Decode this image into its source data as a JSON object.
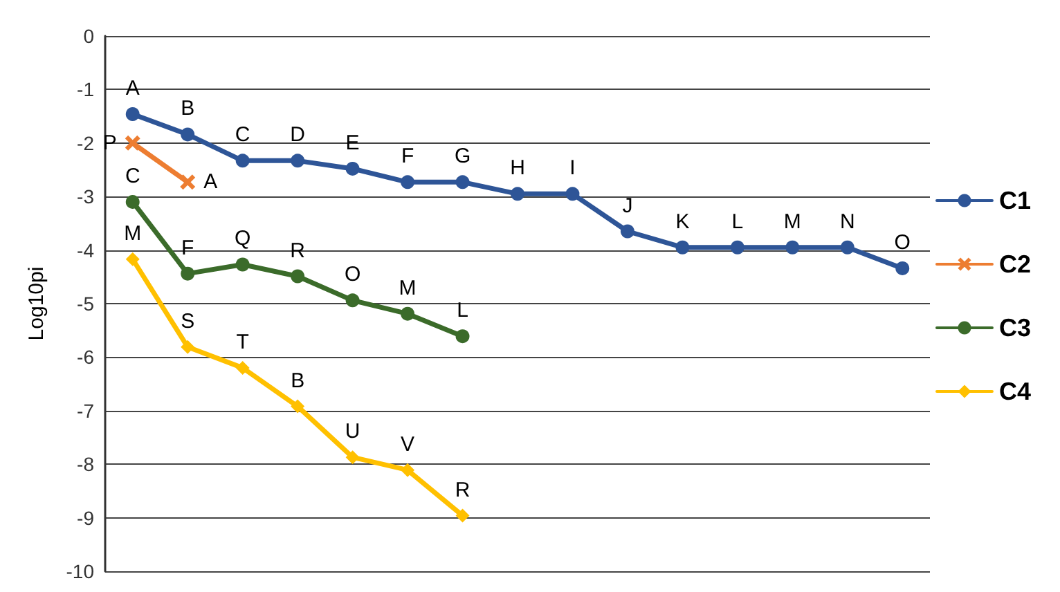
{
  "chart_data": {
    "type": "line",
    "ylabel": "Log10pi",
    "categories": [
      null,
      null,
      null,
      null,
      null,
      null,
      null,
      null,
      null,
      null,
      null,
      null,
      null,
      null,
      null
    ],
    "ylim": [
      -10,
      0
    ],
    "yticks": [
      -10,
      -9,
      -8,
      -7,
      -6,
      -5,
      -4,
      -3,
      -2,
      -1,
      0
    ],
    "grid": "y",
    "legend": "right",
    "tick_labels": "y",
    "line_style": "solid",
    "series": [
      {
        "name": "C1",
        "color": "#2e5597",
        "marker": "circle",
        "values": [
          -1.46,
          -1.84,
          -2.33,
          -2.33,
          -2.48,
          -2.73,
          -2.73,
          -2.95,
          -2.95,
          -3.65,
          -3.95,
          -3.95,
          -3.95,
          -3.95,
          -4.34
        ],
        "value_labels": [
          "A",
          "B",
          "C",
          "D",
          "E",
          "F",
          "G",
          "H",
          "I",
          "J",
          "K",
          "L",
          "M",
          "N",
          "O"
        ]
      },
      {
        "name": "C2",
        "color": "#ed7d31",
        "marker": "cross",
        "values": [
          -2.0,
          -2.73,
          null,
          null,
          null,
          null,
          null,
          null,
          null,
          null,
          null,
          null,
          null,
          null,
          null
        ],
        "value_labels": [
          "P",
          "A",
          null,
          null,
          null,
          null,
          null,
          null,
          null,
          null,
          null,
          null,
          null,
          null,
          null
        ]
      },
      {
        "name": "C3",
        "color": "#3b6b2a",
        "marker": "circle",
        "values": [
          -3.1,
          -4.44,
          -4.27,
          -4.49,
          -4.94,
          -5.19,
          -5.61,
          null,
          null,
          null,
          null,
          null,
          null,
          null,
          null
        ],
        "value_labels": [
          "C",
          "F",
          "Q",
          "R",
          "O",
          "M",
          "L",
          null,
          null,
          null,
          null,
          null,
          null,
          null,
          null
        ]
      },
      {
        "name": "C4",
        "color": "#ffc000",
        "marker": "diamond",
        "values": [
          -4.17,
          -5.81,
          -6.2,
          -6.92,
          -7.87,
          -8.11,
          -8.96,
          null,
          null,
          null,
          null,
          null,
          null,
          null,
          null
        ],
        "value_labels": [
          "M",
          "S",
          "T",
          "B",
          "U",
          "V",
          "R",
          null,
          null,
          null,
          null,
          null,
          null,
          null,
          null
        ]
      }
    ]
  }
}
